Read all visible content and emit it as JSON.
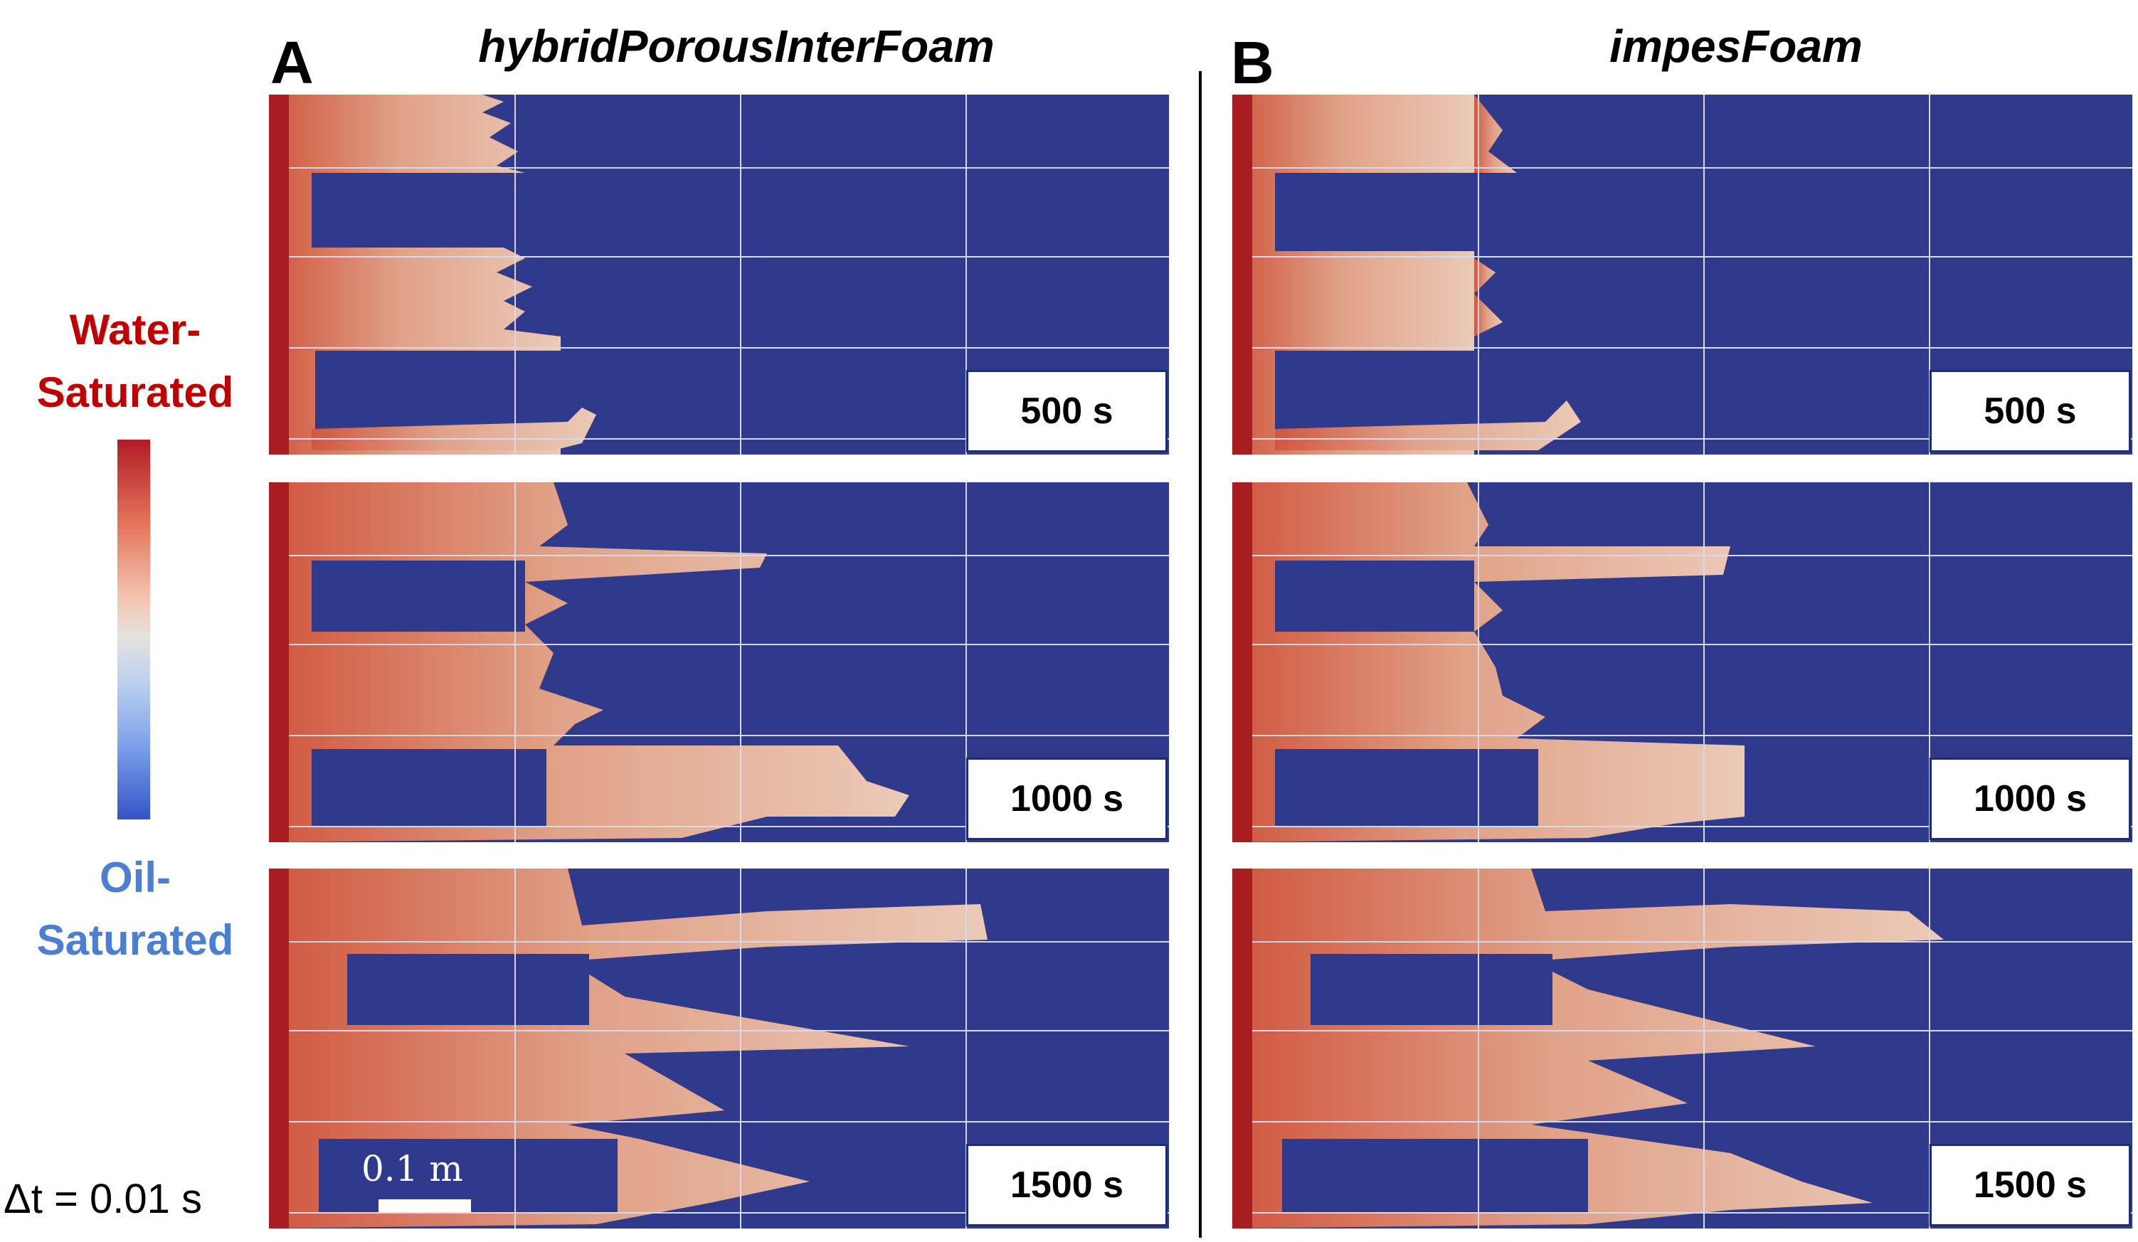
{
  "panels": [
    {
      "letter": "A",
      "title": "hybridPorousInterFoam"
    },
    {
      "letter": "B",
      "title": "impesFoam"
    }
  ],
  "legend": {
    "top_line1": "Water-",
    "top_line2": "Saturated",
    "bottom_line1": "Oil-",
    "bottom_line2": "Saturated",
    "top_color": "#c00000",
    "bottom_color": "#4a7fd4",
    "colormap": [
      "#b11c26",
      "#e4735a",
      "#e6e2df",
      "#7fa3ea",
      "#3652c8"
    ]
  },
  "time_labels": [
    "500 s",
    "1000 s",
    "1500 s"
  ],
  "timestep_label": "Δt = 0.01 s",
  "scale_bar_label": "0.1 m",
  "colors": {
    "oil": "#2f3a8c",
    "water_dark": "#a81c22",
    "water_mid": "#d98266",
    "water_light": "#e8c4b1"
  }
}
